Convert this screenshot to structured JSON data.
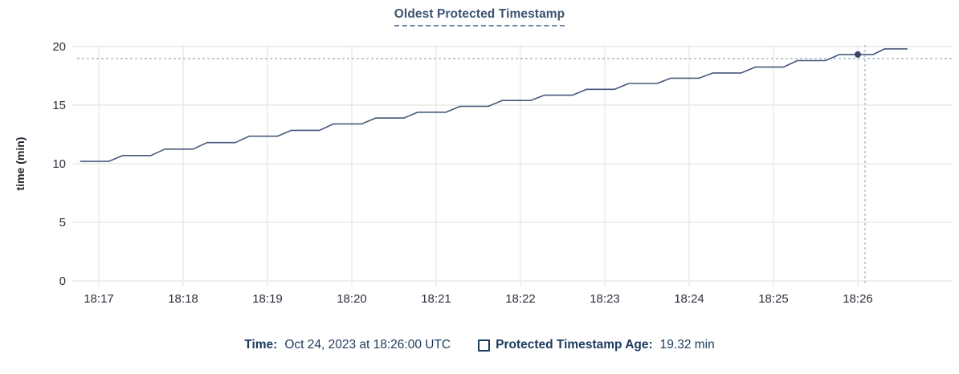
{
  "title": "Oldest Protected Timestamp",
  "footer": {
    "time_label": "Time:",
    "time_value": "Oct 24, 2023 at 18:26:00 UTC",
    "series_label": "Protected Timestamp Age:",
    "series_value": "19.32 min"
  },
  "chart_data": {
    "type": "line",
    "title": "Oldest Protected Timestamp",
    "xlabel": "",
    "ylabel": "time (min)",
    "ylim": [
      0,
      20
    ],
    "y_ticks": [
      0,
      5,
      10,
      15,
      20
    ],
    "x_ticks": [
      "18:17",
      "18:18",
      "18:19",
      "18:20",
      "18:21",
      "18:22",
      "18:23",
      "18:24",
      "18:25",
      "18:26"
    ],
    "grid": true,
    "legend_position": "bottom",
    "points_format": "[seconds after 18:17:00, value in minutes]",
    "series": [
      {
        "name": "Protected Timestamp Age",
        "points": [
          [
            -13,
            10.2
          ],
          [
            7,
            10.2
          ],
          [
            17,
            10.7
          ],
          [
            37,
            10.7
          ],
          [
            47,
            11.25
          ],
          [
            67,
            11.25
          ],
          [
            77,
            11.8
          ],
          [
            97,
            11.8
          ],
          [
            107,
            12.35
          ],
          [
            127,
            12.35
          ],
          [
            137,
            12.85
          ],
          [
            157,
            12.85
          ],
          [
            167,
            13.4
          ],
          [
            187,
            13.4
          ],
          [
            197,
            13.9
          ],
          [
            217,
            13.9
          ],
          [
            227,
            14.4
          ],
          [
            247,
            14.4
          ],
          [
            257,
            14.9
          ],
          [
            277,
            14.9
          ],
          [
            287,
            15.4
          ],
          [
            307,
            15.4
          ],
          [
            317,
            15.85
          ],
          [
            337,
            15.85
          ],
          [
            347,
            16.35
          ],
          [
            367,
            16.35
          ],
          [
            377,
            16.85
          ],
          [
            397,
            16.85
          ],
          [
            407,
            17.3
          ],
          [
            427,
            17.3
          ],
          [
            437,
            17.75
          ],
          [
            457,
            17.75
          ],
          [
            467,
            18.25
          ],
          [
            487,
            18.25
          ],
          [
            497,
            18.8
          ],
          [
            517,
            18.8
          ],
          [
            527,
            19.32
          ],
          [
            551,
            19.32
          ],
          [
            559,
            19.8
          ],
          [
            575,
            19.8
          ]
        ]
      }
    ],
    "crosshair": {
      "time_s": 540,
      "time_label": "18:26:00",
      "value": 19.32
    },
    "colors": {
      "line": "#47587a",
      "dot": "#36466b",
      "crosshair": "#9db3c8",
      "grid": "#e9e9e9",
      "axis_text": "#2b313b",
      "title": "#3c5270",
      "footer_text": "#1b3a5c"
    }
  }
}
